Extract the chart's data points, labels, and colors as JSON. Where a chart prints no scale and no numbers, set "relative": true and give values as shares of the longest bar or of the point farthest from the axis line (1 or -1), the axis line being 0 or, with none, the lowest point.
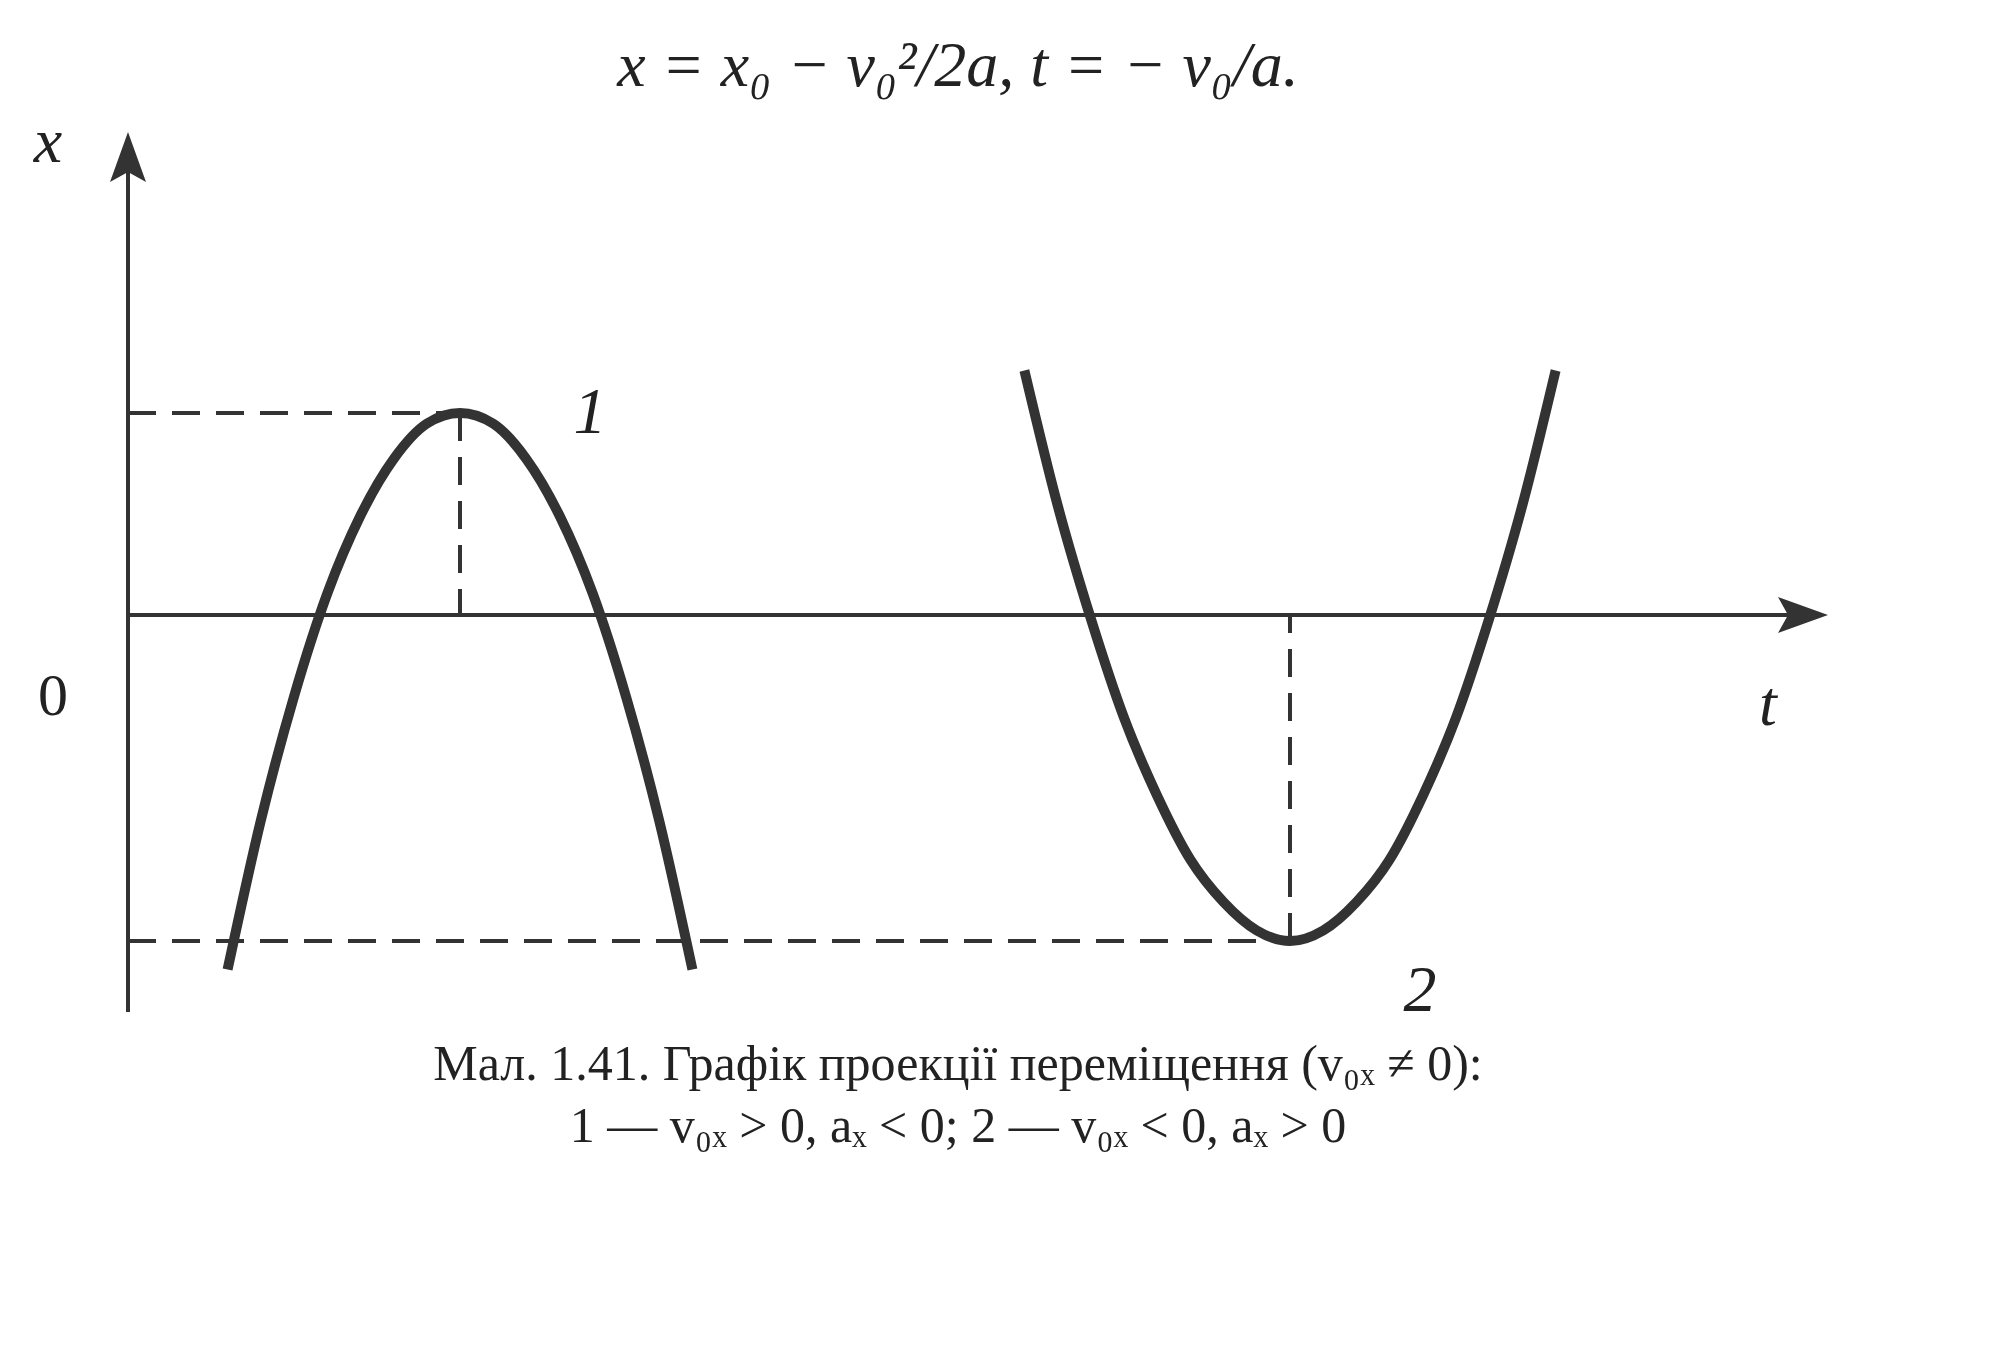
{
  "chart_data": {
    "type": "line",
    "relative": true,
    "title": "x = x₀ − v₀²/2a, t = − v₀/a.",
    "xlabel": "t",
    "ylabel": "x",
    "categories": [
      null,
      null,
      null,
      null,
      null,
      null,
      null,
      null,
      null,
      null,
      null,
      null,
      null,
      null,
      null,
      null,
      null,
      null,
      null,
      null,
      null,
      null,
      null,
      null,
      null,
      null,
      null,
      null,
      null,
      null,
      null,
      null,
      null,
      null,
      null,
      null,
      null,
      null,
      null,
      null,
      null,
      null,
      null,
      null,
      null,
      null,
      null,
      null,
      null,
      null
    ],
    "series": [
      {
        "name": "1",
        "color": "#333333",
        "values": [
          null,
          null,
          null,
          -1,
          -0.58,
          -0.23,
          0.06,
          0.28,
          0.44,
          0.54,
          0.57,
          0.54,
          0.44,
          0.28,
          0.06,
          -0.23,
          -0.58,
          -1,
          null,
          null,
          null,
          null,
          null,
          null,
          null,
          null,
          null,
          null,
          null,
          null,
          null,
          null,
          null,
          null,
          null,
          null,
          null,
          null,
          null,
          null,
          null,
          null,
          null,
          null,
          null,
          null,
          null,
          null,
          null,
          null
        ]
      },
      {
        "name": "2",
        "color": "#333333",
        "values": [
          null,
          null,
          null,
          null,
          null,
          null,
          null,
          null,
          null,
          null,
          null,
          null,
          null,
          null,
          null,
          null,
          null,
          null,
          null,
          null,
          null,
          null,
          null,
          null,
          null,
          null,
          null,
          0.69,
          0.31,
          -0.01,
          -0.29,
          -0.51,
          -0.69,
          -0.81,
          -0.89,
          -0.92,
          -0.89,
          -0.81,
          -0.69,
          -0.51,
          -0.29,
          -0.01,
          0.31,
          0.69,
          null,
          null,
          null,
          null,
          null,
          null
        ]
      }
    ],
    "ref_lines": [
      {
        "axis": "y",
        "value": 0.57,
        "line_style": "dashed",
        "color": "#333333"
      },
      {
        "axis": "y",
        "value": -0.92,
        "line_style": "dashed",
        "color": "#333333"
      }
    ],
    "annotations": [
      "0",
      "Мал. 1.41. Графік проекції переміщення (v₀ₓ ≠ 0):",
      "1 — v₀ₓ > 0,  aₓ < 0; 2 — v₀ₓ < 0,  aₓ > 0"
    ]
  }
}
